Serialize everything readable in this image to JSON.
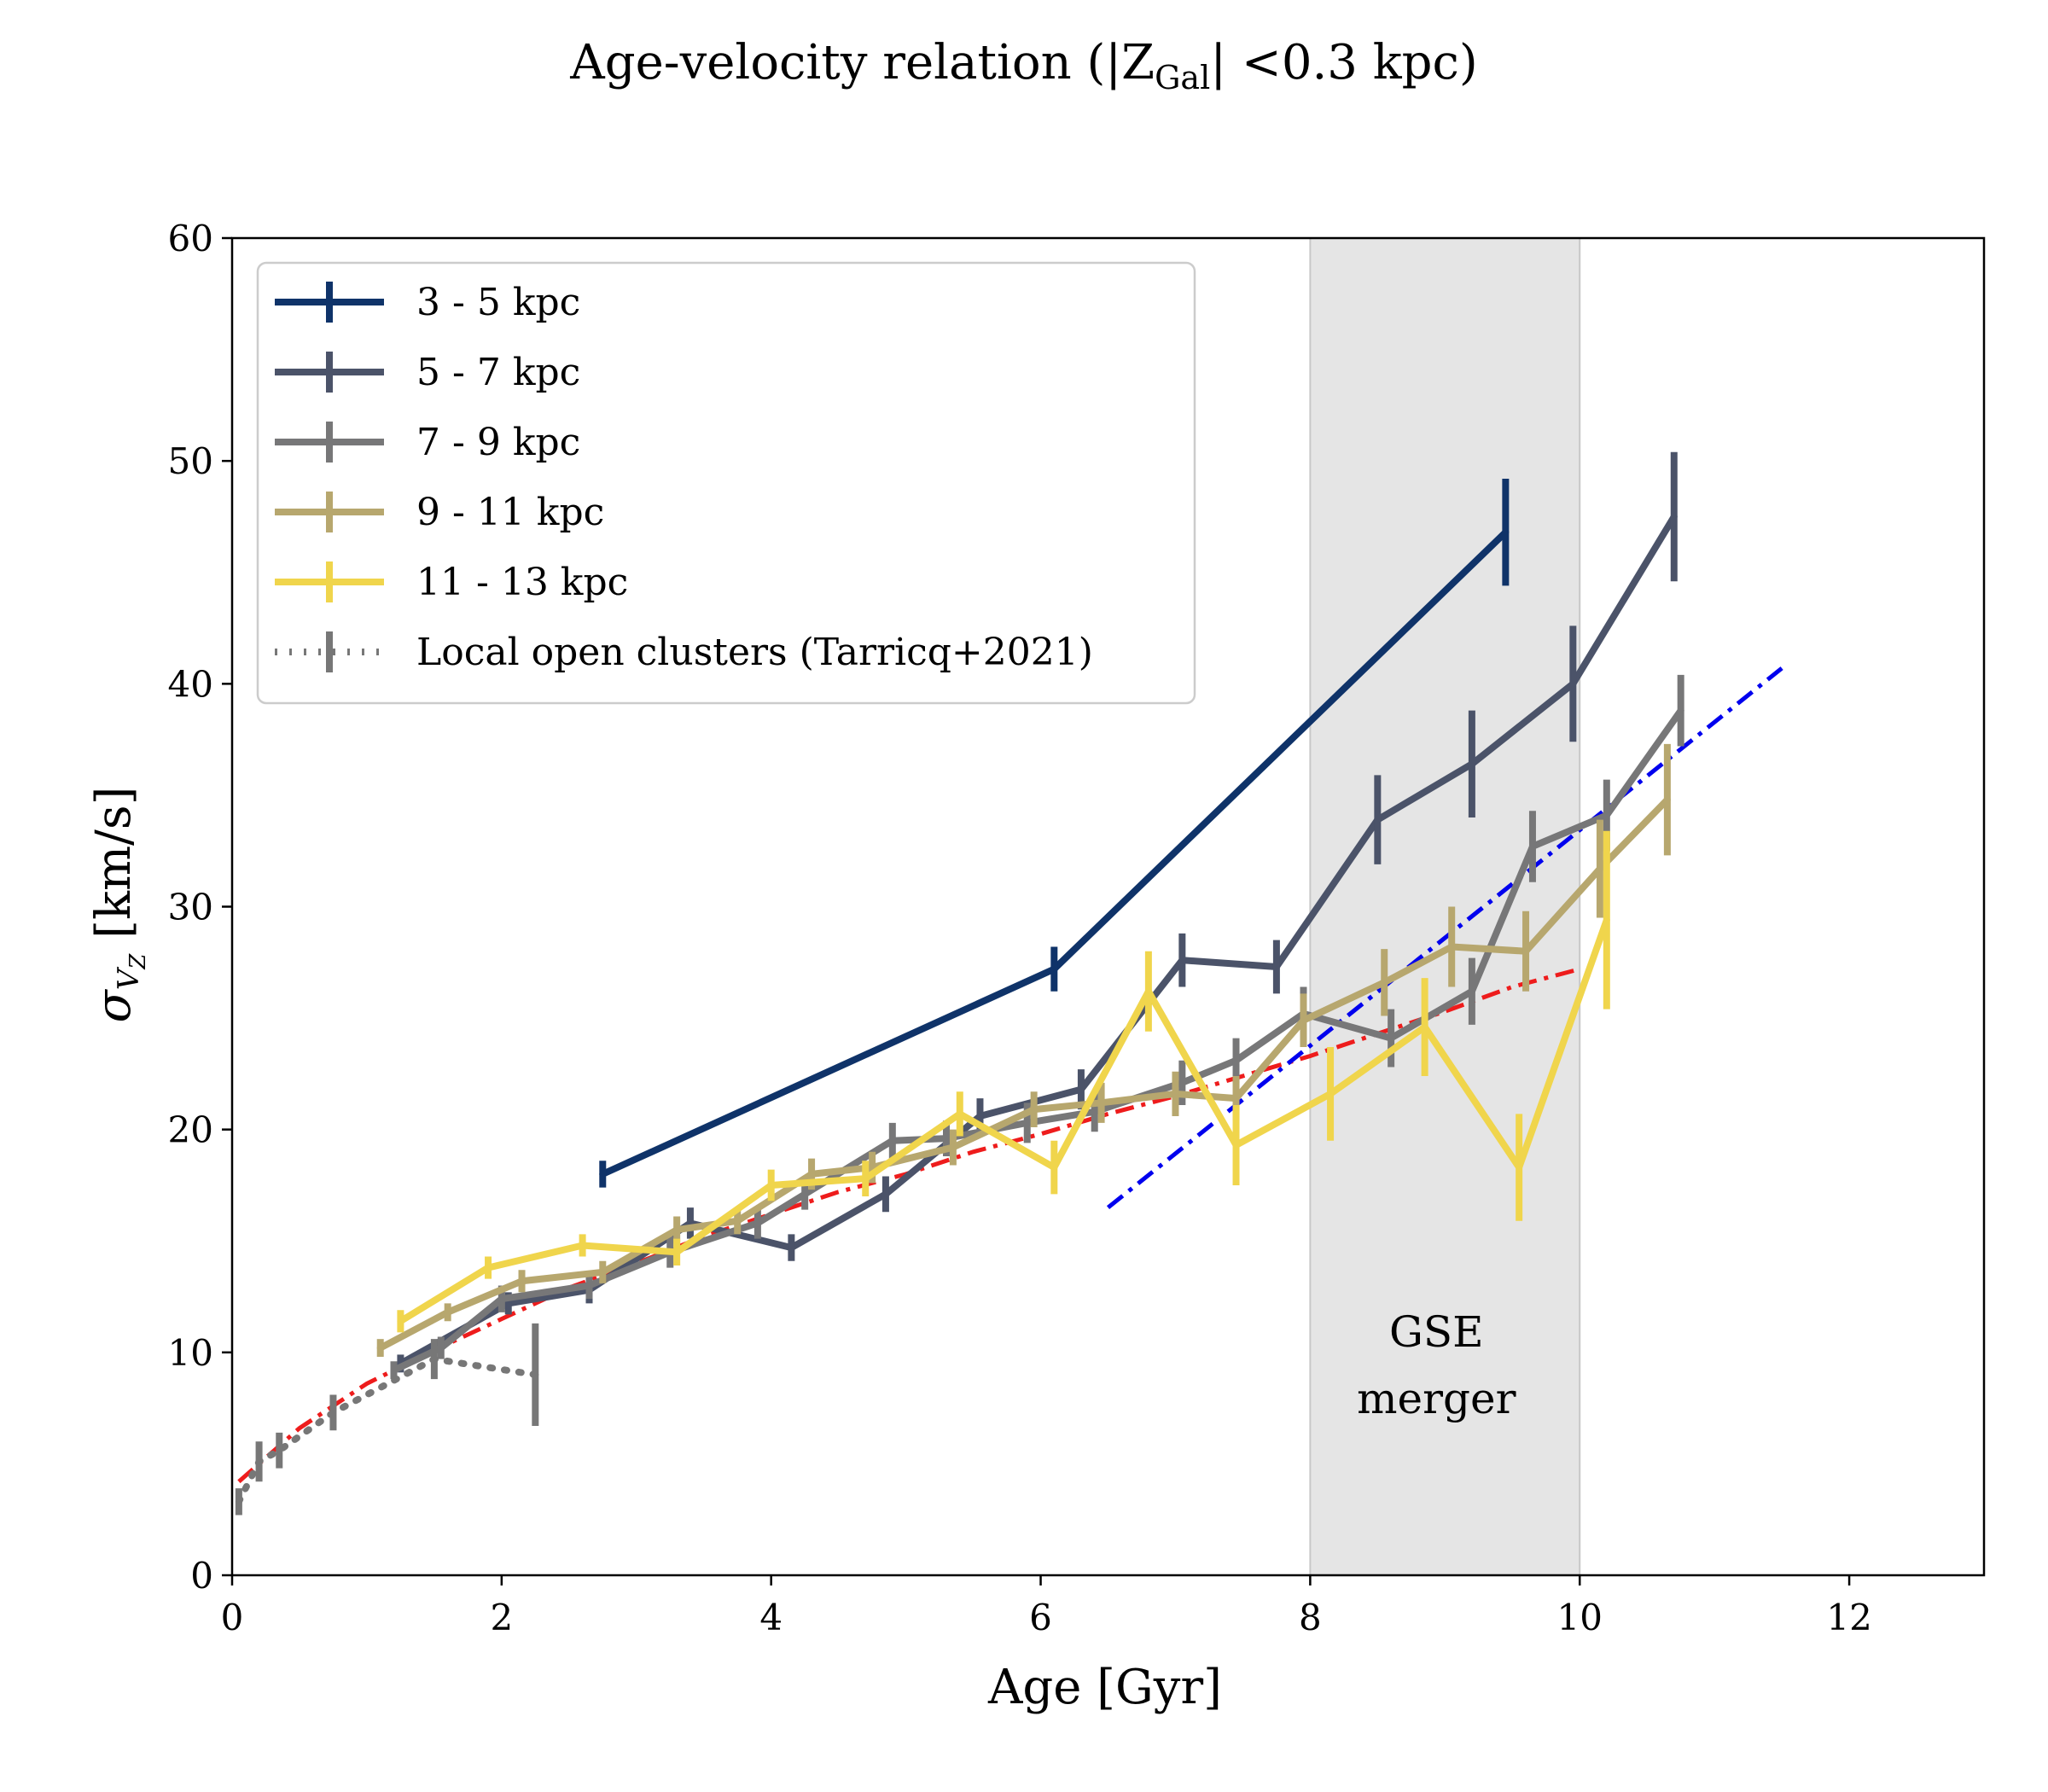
{
  "chart_data": {
    "type": "line",
    "title": "Age-velocity relation (|Z",
    "title_sub": "Gal",
    "title_tail": "| <0.3 kpc)",
    "xlabel": "Age [Gyr]",
    "ylabel": "σ",
    "ylabel_sub": "V",
    "ylabel_subsub": "Z",
    "ylabel_tail": " [km/s]",
    "xlim": [
      0,
      13
    ],
    "ylim": [
      0,
      60
    ],
    "xticks": [
      0,
      2,
      4,
      6,
      8,
      10,
      12
    ],
    "yticks": [
      0,
      10,
      20,
      30,
      40,
      50,
      60
    ],
    "grid": false,
    "legend_position": "top-left",
    "shaded_region": {
      "x": [
        8,
        10
      ],
      "label_lines": [
        "GSE",
        "merger"
      ],
      "color": "#e5e5e5"
    },
    "series": [
      {
        "name": "3 - 5 kpc",
        "color": "#0f3369",
        "x": [
          2.75,
          6.1,
          9.45
        ],
        "y": [
          18.0,
          27.2,
          46.8
        ],
        "yerr": [
          0.6,
          1.0,
          2.4
        ]
      },
      {
        "name": "5 - 7 kpc",
        "color": "#4b5369",
        "x": [
          1.25,
          2.05,
          2.65,
          3.4,
          4.15,
          4.85,
          5.55,
          6.3,
          7.05,
          7.75,
          8.5,
          9.2,
          9.95,
          10.7
        ],
        "y": [
          9.5,
          12.2,
          12.8,
          15.8,
          14.7,
          17.1,
          20.6,
          21.8,
          27.6,
          27.3,
          33.9,
          36.4,
          40.0,
          47.5
        ],
        "yerr": [
          0.4,
          0.5,
          0.6,
          0.7,
          0.6,
          0.8,
          0.8,
          0.9,
          1.2,
          1.2,
          2.0,
          2.4,
          2.6,
          2.9
        ]
      },
      {
        "name": "7 - 9 kpc",
        "color": "#777778",
        "x": [
          1.2,
          1.55,
          2.0,
          2.65,
          3.25,
          3.9,
          4.25,
          4.9,
          5.3,
          5.9,
          6.4,
          7.05,
          7.45,
          7.95,
          8.6,
          9.2,
          9.65,
          10.2,
          10.75
        ],
        "y": [
          9.2,
          10.2,
          12.4,
          13.0,
          14.5,
          15.8,
          17.1,
          19.5,
          19.6,
          20.3,
          20.8,
          22.1,
          23.1,
          25.2,
          24.1,
          26.2,
          32.7,
          34.1,
          38.8
        ],
        "yerr": [
          0.4,
          0.5,
          0.6,
          0.6,
          0.7,
          0.7,
          0.7,
          0.8,
          0.8,
          0.9,
          0.9,
          1.0,
          1.0,
          1.2,
          1.3,
          1.5,
          1.6,
          1.6,
          1.6
        ]
      },
      {
        "name": "9 - 11 kpc",
        "color": "#b7a76e",
        "x": [
          1.1,
          1.6,
          2.15,
          2.75,
          3.3,
          3.75,
          4.3,
          4.75,
          5.35,
          5.95,
          6.45,
          7.0,
          7.45,
          7.95,
          8.55,
          9.05,
          9.6,
          10.15,
          10.65
        ],
        "y": [
          10.2,
          11.8,
          13.2,
          13.6,
          15.5,
          15.9,
          18.0,
          18.3,
          19.2,
          20.9,
          21.2,
          21.6,
          21.4,
          24.9,
          26.6,
          28.2,
          28.0,
          31.7,
          34.8
        ],
        "yerr": [
          0.4,
          0.4,
          0.5,
          0.5,
          0.6,
          0.6,
          0.7,
          0.7,
          0.8,
          0.8,
          0.9,
          1.0,
          1.0,
          1.2,
          1.5,
          1.8,
          1.8,
          2.2,
          2.5
        ]
      },
      {
        "name": "11 - 13 kpc",
        "color": "#f0d54c",
        "x": [
          1.25,
          1.9,
          2.6,
          3.3,
          4.0,
          4.7,
          5.4,
          6.1,
          6.8,
          7.45,
          8.15,
          8.85,
          9.55,
          10.2
        ],
        "y": [
          11.4,
          13.8,
          14.8,
          14.5,
          17.5,
          17.8,
          20.7,
          18.3,
          26.2,
          19.3,
          21.6,
          24.6,
          18.3,
          29.4
        ],
        "yerr": [
          0.5,
          0.5,
          0.5,
          0.6,
          0.7,
          0.8,
          1.0,
          1.2,
          1.8,
          1.8,
          2.1,
          2.2,
          2.4,
          4.0
        ]
      },
      {
        "name": "Local open clusters (Tarricq+2021)",
        "color": "#777777",
        "style": "dotted",
        "x": [
          0.05,
          0.2,
          0.35,
          0.75,
          1.5,
          2.25
        ],
        "y": [
          3.3,
          5.1,
          5.6,
          7.3,
          9.7,
          9.0
        ],
        "yerr": [
          0.6,
          0.9,
          0.8,
          0.8,
          0.9,
          2.3
        ]
      }
    ],
    "fits": [
      {
        "color": "#ee1c1c",
        "style": "dashdot",
        "x": [
          0.05,
          0.5,
          1.0,
          1.5,
          2.0,
          2.5,
          3.0,
          3.5,
          4.0,
          4.5,
          5.0,
          5.5,
          6.0,
          6.5,
          7.0,
          7.5,
          8.0,
          8.5,
          9.0,
          9.5,
          10.0
        ],
        "y": [
          4.2,
          6.6,
          8.6,
          10.1,
          11.5,
          12.9,
          14.0,
          15.2,
          16.2,
          17.2,
          18.0,
          19.0,
          19.8,
          20.7,
          21.5,
          22.4,
          23.3,
          24.3,
          25.3,
          26.4,
          27.2
        ]
      },
      {
        "color": "#0000ee",
        "style": "dashdot",
        "x": [
          6.5,
          11.5
        ],
        "y": [
          16.5,
          40.7
        ]
      }
    ]
  }
}
